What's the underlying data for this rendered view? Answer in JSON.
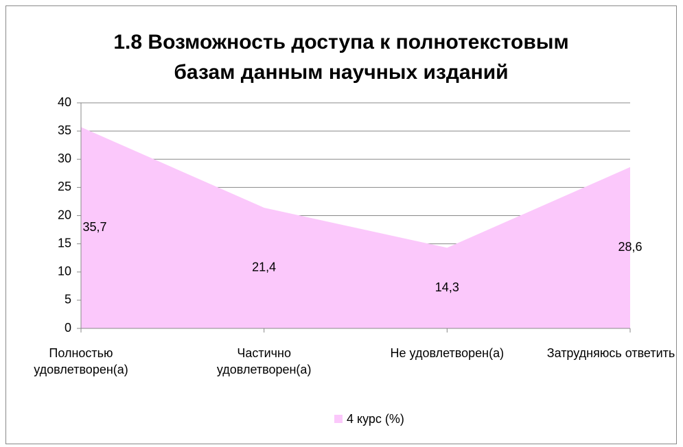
{
  "chart_data": {
    "type": "area",
    "title": "1.8 Возможность доступа к полнотекстовым базам данным научных изданий",
    "categories": [
      "Полностью удовлетворен(а)",
      "Частично удовлетворен(а)",
      "Не удовлетворен(а)",
      "Затрудняюсь ответить"
    ],
    "series": [
      {
        "name": "4 курс (%)",
        "color": "#fbc8fb",
        "values": [
          35.7,
          21.4,
          14.3,
          28.6
        ],
        "value_labels": [
          "35,7",
          "21,4",
          "14,3",
          "28,6"
        ]
      }
    ],
    "ylim": [
      0,
      40
    ],
    "yticks": [
      0,
      5,
      10,
      15,
      20,
      25,
      30,
      35,
      40
    ],
    "grid": true,
    "legend": "bottom"
  }
}
